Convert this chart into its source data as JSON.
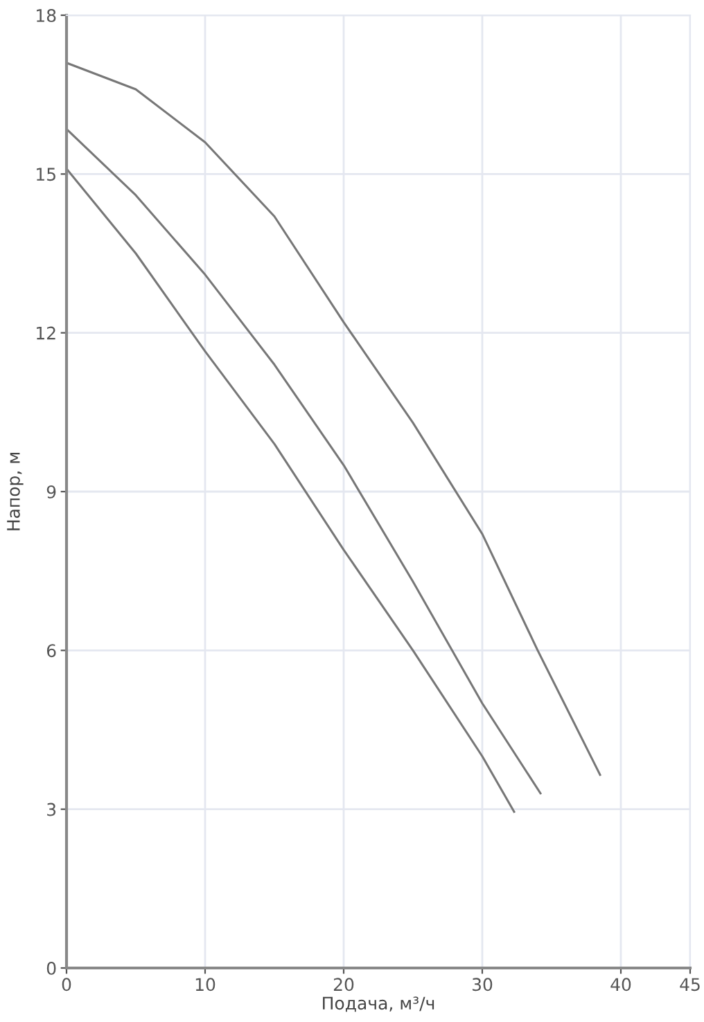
{
  "chart_data": {
    "type": "line",
    "xlabel": "Подача, м³/ч",
    "ylabel": "Напор, м",
    "xlim": [
      0,
      45
    ],
    "ylim": [
      0,
      18
    ],
    "xticks": [
      0,
      10,
      20,
      30,
      40,
      45
    ],
    "yticks": [
      0,
      3,
      6,
      9,
      12,
      15,
      18
    ],
    "grid": true,
    "marker": "none",
    "line_style": "solid",
    "series": [
      {
        "color": "#777777",
        "x": [
          0,
          5,
          10,
          15,
          20,
          25,
          30,
          34,
          38.5
        ],
        "values": [
          17.1,
          16.6,
          15.6,
          14.2,
          12.2,
          10.3,
          8.2,
          6.0,
          3.65
        ]
      },
      {
        "color": "#777777",
        "x": [
          0,
          5,
          10,
          15,
          20,
          25,
          30,
          34.2
        ],
        "values": [
          15.85,
          14.6,
          13.1,
          11.4,
          9.5,
          7.3,
          5.0,
          3.3
        ]
      },
      {
        "color": "#777777",
        "x": [
          0,
          5,
          10,
          15,
          20,
          25,
          30,
          32.3
        ],
        "values": [
          15.1,
          13.5,
          11.65,
          9.9,
          7.9,
          6.0,
          4.0,
          2.95
        ]
      }
    ]
  }
}
